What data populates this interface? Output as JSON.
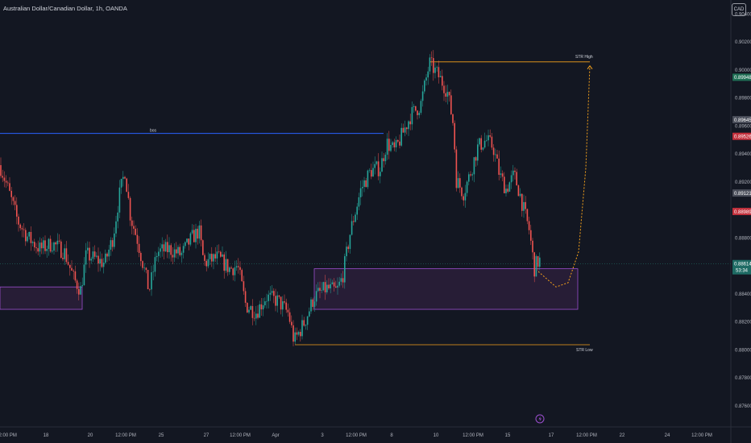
{
  "header": {
    "title": "Australian Dollar/Canadian Dollar, 1h, OANDA",
    "currency": "CAD"
  },
  "colors": {
    "background": "#131722",
    "up": "#26a69a",
    "down": "#ef5350",
    "bos_line": "#2962ff",
    "str_line": "#f7a21b",
    "zone_fill": "#2b1f3a",
    "zone_border": "#9c4fcf",
    "current_price_line": "#1e6b64"
  },
  "chart_data": {
    "type": "candlestick",
    "title": "Australian Dollar/Canadian Dollar, 1h, OANDA",
    "ylim": [
      0.8745,
      0.905
    ],
    "y_ticks": [
      "0.87600",
      "0.87800",
      "0.88000",
      "0.88200",
      "0.88400",
      "0.88600",
      "0.88800",
      "0.89000",
      "0.89200",
      "0.89400",
      "0.89600",
      "0.89800",
      "0.90000",
      "0.90200",
      "0.90400"
    ],
    "x_ticks": [
      "12:00 PM",
      "18",
      "20",
      "12:00 PM",
      "25",
      "27",
      "12:00 PM",
      "Apr",
      "3",
      "12:00 PM",
      "8",
      "10",
      "12:00 PM",
      "15",
      "17",
      "12:00 PM",
      "22",
      "24",
      "12:00 PM"
    ],
    "path_points": [
      [
        0,
        0.8932
      ],
      [
        10,
        0.8915
      ],
      [
        22,
        0.8892
      ],
      [
        35,
        0.888
      ],
      [
        50,
        0.8872
      ],
      [
        65,
        0.8876
      ],
      [
        80,
        0.887
      ],
      [
        92,
        0.885
      ],
      [
        100,
        0.8843
      ],
      [
        107,
        0.8868
      ],
      [
        118,
        0.8865
      ],
      [
        130,
        0.8862
      ],
      [
        140,
        0.888
      ],
      [
        148,
        0.891
      ],
      [
        155,
        0.8928
      ],
      [
        162,
        0.8895
      ],
      [
        170,
        0.888
      ],
      [
        178,
        0.886
      ],
      [
        185,
        0.8842
      ],
      [
        195,
        0.887
      ],
      [
        210,
        0.8872
      ],
      [
        225,
        0.8868
      ],
      [
        238,
        0.888
      ],
      [
        247,
        0.8885
      ],
      [
        253,
        0.8862
      ],
      [
        270,
        0.8866
      ],
      [
        285,
        0.8858
      ],
      [
        295,
        0.886
      ],
      [
        305,
        0.8832
      ],
      [
        318,
        0.8827
      ],
      [
        330,
        0.8838
      ],
      [
        345,
        0.8835
      ],
      [
        358,
        0.8826
      ],
      [
        365,
        0.8806
      ],
      [
        378,
        0.882
      ],
      [
        390,
        0.8838
      ],
      [
        405,
        0.8844
      ],
      [
        418,
        0.8842
      ],
      [
        425,
        0.8852
      ],
      [
        435,
        0.8885
      ],
      [
        448,
        0.8915
      ],
      [
        460,
        0.8928
      ],
      [
        472,
        0.893
      ],
      [
        480,
        0.8948
      ],
      [
        490,
        0.8942
      ],
      [
        500,
        0.8955
      ],
      [
        510,
        0.8968
      ],
      [
        522,
        0.8975
      ],
      [
        533,
        0.9005
      ],
      [
        545,
        0.8995
      ],
      [
        555,
        0.8985
      ],
      [
        563,
        0.896
      ],
      [
        566,
        0.8922
      ],
      [
        575,
        0.8912
      ],
      [
        583,
        0.8925
      ],
      [
        593,
        0.8945
      ],
      [
        603,
        0.895
      ],
      [
        612,
        0.8945
      ],
      [
        620,
        0.8925
      ],
      [
        628,
        0.8915
      ],
      [
        638,
        0.8925
      ],
      [
        645,
        0.8912
      ],
      [
        650,
        0.89
      ],
      [
        657,
        0.8885
      ],
      [
        663,
        0.8858
      ],
      [
        666,
        0.8862
      ],
      [
        670,
        0.8864
      ]
    ],
    "bos_level": 0.89547,
    "current_price": 0.88614,
    "str_high": 0.90058,
    "str_low": 0.88037,
    "zones": [
      {
        "x0": 0,
        "x1": 102,
        "top": 0.8845,
        "bottom": 0.8829
      },
      {
        "x0": 390,
        "x1": 717,
        "top": 0.8858,
        "bottom": 0.8829
      }
    ],
    "projection": [
      [
        668,
        0.8856
      ],
      [
        690,
        0.8845
      ],
      [
        705,
        0.8848
      ],
      [
        718,
        0.887
      ],
      [
        727,
        0.893
      ],
      [
        732,
        0.9003
      ]
    ],
    "price_tags": [
      {
        "label": "0.89948",
        "value": 0.89948,
        "kind": "green"
      },
      {
        "label": "0.89645",
        "value": 0.89645,
        "kind": "grey"
      },
      {
        "label": "0.89526",
        "value": 0.89526,
        "kind": "red"
      },
      {
        "label": "0.89121",
        "value": 0.89121,
        "kind": "grey"
      },
      {
        "label": "0.88989",
        "value": 0.88989,
        "kind": "red"
      },
      {
        "label": "0.88614",
        "value": 0.88614,
        "kind": "teal",
        "sub": "53:34"
      }
    ],
    "annotations": {
      "bos": "bos",
      "str_high": "STR High",
      "str_low": "STR Low"
    }
  }
}
